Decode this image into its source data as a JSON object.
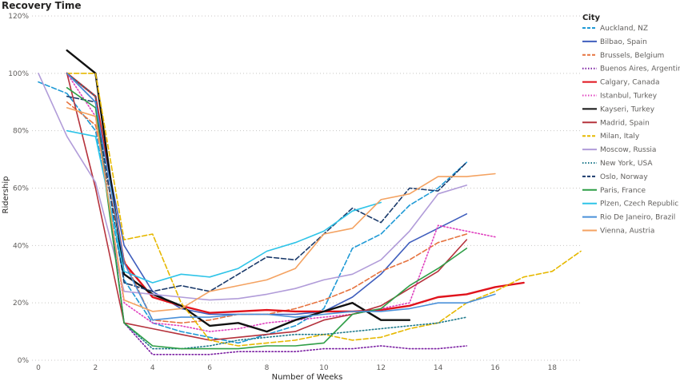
{
  "chart_data": {
    "type": "line",
    "title": "Recovery Time",
    "xlabel": "Number of Weeks",
    "ylabel": "Ridership",
    "xlim": [
      0,
      19
    ],
    "ylim": [
      0,
      120
    ],
    "x_ticks": [
      0,
      2,
      4,
      6,
      8,
      10,
      12,
      14,
      16,
      18
    ],
    "y_ticks": [
      0,
      20,
      40,
      60,
      80,
      100,
      120
    ],
    "y_tick_labels": [
      "0%",
      "20%",
      "40%",
      "60%",
      "80%",
      "100%",
      "120%"
    ],
    "grid": "horizontal dotted",
    "legend_title": "City",
    "legend_position": "right",
    "series": [
      {
        "name": "Auckland, NZ",
        "color": "#1f9ad6",
        "dash": "dashed",
        "points": [
          [
            0,
            97
          ],
          [
            1,
            93
          ],
          [
            2,
            80
          ],
          [
            3,
            28
          ],
          [
            4,
            13
          ],
          [
            5,
            10
          ],
          [
            6,
            8
          ],
          [
            7,
            6
          ],
          [
            8,
            9
          ],
          [
            9,
            12
          ],
          [
            10,
            18
          ],
          [
            11,
            39
          ],
          [
            12,
            44
          ],
          [
            13,
            54
          ],
          [
            14,
            60
          ],
          [
            15,
            69
          ]
        ]
      },
      {
        "name": "Bilbao, Spain",
        "color": "#3f5ebd",
        "dash": "solid",
        "points": [
          [
            1,
            100
          ],
          [
            2,
            90
          ],
          [
            3,
            40
          ],
          [
            4,
            24
          ],
          [
            5,
            18
          ],
          [
            6,
            16
          ],
          [
            7,
            16
          ],
          [
            8,
            16
          ],
          [
            9,
            16
          ],
          [
            10,
            17
          ],
          [
            11,
            22
          ],
          [
            12,
            30
          ],
          [
            13,
            41
          ],
          [
            14,
            46
          ],
          [
            15,
            51
          ]
        ]
      },
      {
        "name": "Brussels, Belgium",
        "color": "#e6733f",
        "dash": "dashed",
        "points": [
          [
            1,
            90
          ],
          [
            2,
            82
          ],
          [
            3,
            35
          ],
          [
            4,
            14
          ],
          [
            5,
            13
          ],
          [
            6,
            14
          ],
          [
            7,
            16
          ],
          [
            8,
            16
          ],
          [
            9,
            18
          ],
          [
            10,
            21
          ],
          [
            11,
            25
          ],
          [
            12,
            31
          ],
          [
            13,
            35
          ],
          [
            14,
            41
          ],
          [
            15,
            44
          ]
        ]
      },
      {
        "name": "Buenos Aires, Argentina",
        "color": "#7b1fa2",
        "dash": "dotted",
        "points": [
          [
            1,
            100
          ],
          [
            2,
            90
          ],
          [
            3,
            13
          ],
          [
            4,
            2
          ],
          [
            5,
            2
          ],
          [
            6,
            2
          ],
          [
            7,
            3
          ],
          [
            8,
            3
          ],
          [
            9,
            3
          ],
          [
            10,
            4
          ],
          [
            11,
            4
          ],
          [
            12,
            5
          ],
          [
            13,
            4
          ],
          [
            14,
            4
          ],
          [
            15,
            5
          ]
        ]
      },
      {
        "name": "Calgary, Canada",
        "color": "#e0131c",
        "dash": "solid",
        "points": [
          [
            1,
            100
          ],
          [
            2,
            92
          ],
          [
            3,
            34
          ],
          [
            4,
            22
          ],
          [
            5,
            19
          ],
          [
            6,
            16.5
          ],
          [
            7,
            17
          ],
          [
            8,
            17.5
          ],
          [
            9,
            17
          ],
          [
            10,
            17
          ],
          [
            11,
            17
          ],
          [
            12,
            17.5
          ],
          [
            13,
            19
          ],
          [
            14,
            22
          ],
          [
            15,
            23
          ],
          [
            16,
            25.5
          ],
          [
            17,
            27
          ]
        ]
      },
      {
        "name": "Istanbul, Turkey",
        "color": "#e040bf",
        "dash": "dotted",
        "points": [
          [
            1,
            100
          ],
          [
            2,
            85
          ],
          [
            3,
            20
          ],
          [
            4,
            13
          ],
          [
            5,
            12
          ],
          [
            6,
            10
          ],
          [
            7,
            11
          ],
          [
            8,
            13
          ],
          [
            9,
            14
          ],
          [
            10,
            15
          ],
          [
            11,
            16
          ],
          [
            12,
            18
          ],
          [
            13,
            20
          ],
          [
            14,
            47
          ],
          [
            15,
            45
          ],
          [
            16,
            43
          ]
        ]
      },
      {
        "name": "Kayseri, Turkey",
        "color": "#111111",
        "dash": "solid",
        "points": [
          [
            1,
            108
          ],
          [
            2,
            100
          ],
          [
            3,
            30
          ],
          [
            4,
            23
          ],
          [
            5,
            19
          ],
          [
            6,
            12
          ],
          [
            7,
            13
          ],
          [
            8,
            10
          ],
          [
            9,
            14
          ],
          [
            10,
            17
          ],
          [
            11,
            20
          ],
          [
            12,
            14
          ],
          [
            13,
            14
          ]
        ]
      },
      {
        "name": "Madrid, Spain",
        "color": "#b5323c",
        "dash": "solid",
        "points": [
          [
            1,
            100
          ],
          [
            2,
            60
          ],
          [
            3,
            13
          ],
          [
            4,
            11
          ],
          [
            5,
            9
          ],
          [
            6,
            7
          ],
          [
            7,
            8
          ],
          [
            8,
            9
          ],
          [
            9,
            10
          ],
          [
            10,
            14
          ],
          [
            11,
            16
          ],
          [
            12,
            19
          ],
          [
            13,
            25
          ],
          [
            14,
            31
          ],
          [
            15,
            42
          ]
        ]
      },
      {
        "name": "Milan, Italy",
        "color": "#e6b800",
        "dash": "dashed",
        "points": [
          [
            1,
            100
          ],
          [
            2,
            100
          ],
          [
            3,
            42
          ],
          [
            4,
            44
          ],
          [
            5,
            20
          ],
          [
            6,
            7
          ],
          [
            7,
            5
          ],
          [
            8,
            6
          ],
          [
            9,
            7
          ],
          [
            10,
            9
          ],
          [
            11,
            7
          ],
          [
            12,
            8
          ],
          [
            13,
            11
          ],
          [
            14,
            13
          ],
          [
            15,
            20
          ],
          [
            16,
            24
          ],
          [
            17,
            29
          ],
          [
            18,
            31
          ],
          [
            19,
            38
          ]
        ]
      },
      {
        "name": "Moscow, Russia",
        "color": "#b19cd9",
        "dash": "solid",
        "points": [
          [
            0,
            100
          ],
          [
            1,
            78
          ],
          [
            2,
            62
          ],
          [
            3,
            24
          ],
          [
            4,
            23
          ],
          [
            5,
            22
          ],
          [
            6,
            21
          ],
          [
            7,
            21.5
          ],
          [
            8,
            23
          ],
          [
            9,
            25
          ],
          [
            10,
            28
          ],
          [
            11,
            30
          ],
          [
            12,
            35
          ],
          [
            13,
            45
          ],
          [
            14,
            58
          ],
          [
            15,
            61
          ]
        ]
      },
      {
        "name": "New York, USA",
        "color": "#1f7a8c",
        "dash": "dotted",
        "points": [
          [
            1,
            100
          ],
          [
            2,
            92
          ],
          [
            3,
            13
          ],
          [
            4,
            4
          ],
          [
            5,
            4
          ],
          [
            6,
            5
          ],
          [
            7,
            7
          ],
          [
            8,
            8
          ],
          [
            9,
            9
          ],
          [
            10,
            9
          ],
          [
            11,
            10
          ],
          [
            12,
            11
          ],
          [
            13,
            12
          ],
          [
            14,
            13
          ],
          [
            15,
            15
          ]
        ]
      },
      {
        "name": "Oslo, Norway",
        "color": "#1a3a6b",
        "dash": "dashed",
        "points": [
          [
            1,
            92
          ],
          [
            2,
            90
          ],
          [
            3,
            27
          ],
          [
            4,
            24
          ],
          [
            5,
            26
          ],
          [
            6,
            24
          ],
          [
            7,
            30
          ],
          [
            8,
            36
          ],
          [
            9,
            35
          ],
          [
            10,
            44
          ],
          [
            11,
            53
          ],
          [
            12,
            48
          ],
          [
            13,
            60
          ],
          [
            14,
            59
          ],
          [
            15,
            69
          ]
        ]
      },
      {
        "name": "Paris, France",
        "color": "#2e9e46",
        "dash": "solid",
        "points": [
          [
            1,
            95
          ],
          [
            2,
            88
          ],
          [
            3,
            13
          ],
          [
            4,
            5
          ],
          [
            5,
            4
          ],
          [
            6,
            4
          ],
          [
            7,
            4
          ],
          [
            8,
            5
          ],
          [
            9,
            5
          ],
          [
            10,
            6
          ],
          [
            11,
            16
          ],
          [
            12,
            18
          ],
          [
            13,
            26
          ],
          [
            14,
            32
          ],
          [
            15,
            39
          ]
        ]
      },
      {
        "name": "Plzen, Czech Republic",
        "color": "#2ec4e8",
        "dash": "solid",
        "points": [
          [
            1,
            80
          ],
          [
            2,
            78
          ],
          [
            3,
            31
          ],
          [
            4,
            27
          ],
          [
            5,
            30
          ],
          [
            6,
            29
          ],
          [
            7,
            32
          ],
          [
            8,
            38
          ],
          [
            9,
            41
          ],
          [
            10,
            45
          ],
          [
            11,
            52
          ],
          [
            12,
            55
          ]
        ]
      },
      {
        "name": "Rio De Janeiro, Brazil",
        "color": "#4a90d9",
        "dash": "solid",
        "points": [
          [
            1,
            100
          ],
          [
            2,
            90
          ],
          [
            3,
            34
          ],
          [
            4,
            14
          ],
          [
            5,
            15
          ],
          [
            6,
            15
          ],
          [
            7,
            16
          ],
          [
            8,
            16
          ],
          [
            9,
            15
          ],
          [
            10,
            16
          ],
          [
            11,
            17
          ],
          [
            12,
            17
          ],
          [
            13,
            18
          ],
          [
            14,
            20
          ],
          [
            15,
            20
          ],
          [
            16,
            23
          ]
        ]
      },
      {
        "name": "Vienna, Austria",
        "color": "#f4a261",
        "dash": "solid",
        "points": [
          [
            1,
            88
          ],
          [
            2,
            85
          ],
          [
            3,
            21
          ],
          [
            4,
            17
          ],
          [
            5,
            18
          ],
          [
            6,
            24
          ],
          [
            7,
            26
          ],
          [
            8,
            28
          ],
          [
            9,
            32
          ],
          [
            10,
            44
          ],
          [
            11,
            46
          ],
          [
            12,
            56
          ],
          [
            13,
            58
          ],
          [
            14,
            64
          ],
          [
            15,
            64
          ],
          [
            16,
            65
          ]
        ]
      }
    ]
  }
}
